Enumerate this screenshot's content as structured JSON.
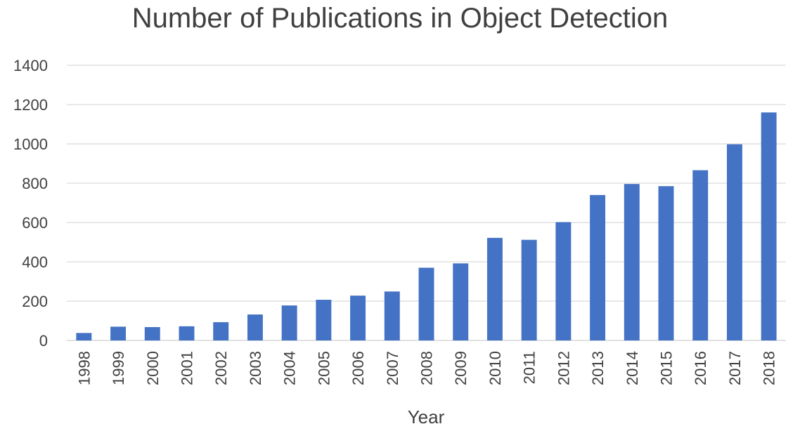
{
  "chart_data": {
    "type": "bar",
    "title": "Number of Publications in Object Detection",
    "xlabel": "Year",
    "ylabel": "",
    "ylim": [
      0,
      1400
    ],
    "yticks": [
      0,
      200,
      400,
      600,
      800,
      1000,
      1200,
      1400
    ],
    "grid": true,
    "legend": "none",
    "bar_color": "#4472C4",
    "grid_color": "#D9D9D9",
    "categories": [
      "1998",
      "1999",
      "2000",
      "2001",
      "2002",
      "2003",
      "2004",
      "2005",
      "2006",
      "2007",
      "2008",
      "2009",
      "2010",
      "2011",
      "2012",
      "2013",
      "2014",
      "2015",
      "2016",
      "2017",
      "2018"
    ],
    "values": [
      38,
      70,
      68,
      72,
      93,
      132,
      178,
      207,
      228,
      249,
      370,
      392,
      522,
      512,
      602,
      740,
      796,
      785,
      866,
      998,
      1160
    ]
  }
}
